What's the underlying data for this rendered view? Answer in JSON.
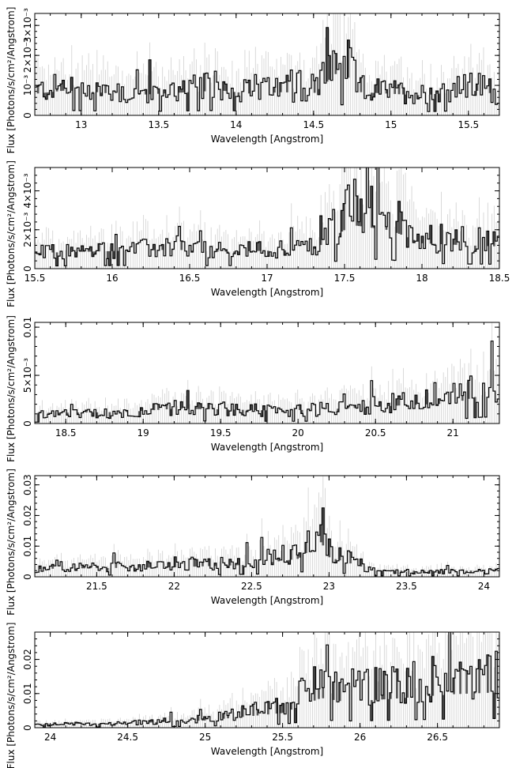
{
  "figure": {
    "xlabel": "Wavelength [Angstrom]",
    "ylabel": "Flux [Photons/s/cm²/Angstrom]"
  },
  "chart_data": [
    {
      "type": "line",
      "xlim": [
        12.7,
        15.7
      ],
      "ylim": [
        0,
        0.0034
      ],
      "xticks": [
        13,
        13.5,
        14,
        14.5,
        15,
        15.5
      ],
      "xtick_labels": [
        "13",
        "13.5",
        "14",
        "14.5",
        "15",
        "15.5"
      ],
      "yticks": [
        0,
        0.001,
        0.002,
        0.003
      ],
      "ytick_labels": [
        "0",
        "10⁻³",
        "2×10⁻³",
        "3×10⁻³"
      ],
      "xlabel": "Wavelength [Angstrom]",
      "ylabel": "Flux [Photons/s/cm²/Angstrom]",
      "series": [
        {
          "x": [
            12.7,
            12.9,
            13.1,
            13.3,
            13.5,
            13.7,
            13.9,
            14.1,
            14.3,
            14.5,
            14.68,
            14.8,
            15.0,
            15.2,
            15.4,
            15.6,
            15.7
          ],
          "y": [
            0.0009,
            0.0011,
            0.001,
            0.0008,
            0.0009,
            0.001,
            0.0011,
            0.0009,
            0.001,
            0.0009,
            0.0024,
            0.001,
            0.0009,
            0.0008,
            0.001,
            0.0011,
            0.0007
          ]
        }
      ],
      "baseline": 0.0005
    },
    {
      "type": "line",
      "xlim": [
        15.5,
        18.5
      ],
      "ylim": [
        0,
        0.0052
      ],
      "xticks": [
        15.5,
        16,
        16.5,
        17,
        17.5,
        18,
        18.5
      ],
      "xtick_labels": [
        "15.5",
        "16",
        "16.5",
        "17",
        "17.5",
        "18",
        "18.5"
      ],
      "yticks": [
        0,
        0.002,
        0.004
      ],
      "ytick_labels": [
        "0",
        "2×10⁻³",
        "4×10⁻³"
      ],
      "xlabel": "Wavelength [Angstrom]",
      "ylabel": "Flux [Photons/s/cm²/Angstrom]",
      "series": [
        {
          "x": [
            15.5,
            15.8,
            16.1,
            16.4,
            16.7,
            17.0,
            17.3,
            17.55,
            17.8,
            18.0,
            18.3,
            18.5
          ],
          "y": [
            0.0009,
            0.001,
            0.0011,
            0.0012,
            0.001,
            0.0011,
            0.0012,
            0.0035,
            0.003,
            0.0018,
            0.0016,
            0.0015
          ]
        }
      ],
      "baseline": 0.0007
    },
    {
      "type": "line",
      "xlim": [
        18.3,
        21.3
      ],
      "ylim": [
        0,
        0.0105
      ],
      "xticks": [
        18.5,
        19,
        19.5,
        20,
        20.5,
        21
      ],
      "xtick_labels": [
        "18.5",
        "19",
        "19.5",
        "20",
        "20.5",
        "21"
      ],
      "yticks": [
        0,
        0.005,
        0.01
      ],
      "ytick_labels": [
        "0",
        "5×10⁻³",
        "0.01"
      ],
      "xlabel": "Wavelength [Angstrom]",
      "ylabel": "Flux [Photons/s/cm²/Angstrom]",
      "series": [
        {
          "x": [
            18.3,
            18.6,
            18.9,
            19.2,
            19.5,
            19.8,
            20.1,
            20.4,
            20.7,
            21.0,
            21.2,
            21.3
          ],
          "y": [
            0.001,
            0.0011,
            0.0012,
            0.0018,
            0.0017,
            0.0015,
            0.0016,
            0.002,
            0.0025,
            0.0028,
            0.0045,
            0.004
          ]
        }
      ],
      "baseline": 0.0012
    },
    {
      "type": "line",
      "xlim": [
        21.1,
        24.1
      ],
      "ylim": [
        0,
        0.033
      ],
      "xticks": [
        21.5,
        22,
        22.5,
        23,
        23.5,
        24
      ],
      "xtick_labels": [
        "21.5",
        "22",
        "22.5",
        "23",
        "23.5",
        "24"
      ],
      "yticks": [
        0,
        0.01,
        0.02,
        0.03
      ],
      "ytick_labels": [
        "0",
        "0.01",
        "0.02",
        "0.03"
      ],
      "xlabel": "Wavelength [Angstrom]",
      "ylabel": "Flux [Photons/s/cm²/Angstrom]",
      "series": [
        {
          "x": [
            21.1,
            21.5,
            22.0,
            22.5,
            22.8,
            22.95,
            23.0,
            23.3,
            23.6,
            24.1
          ],
          "y": [
            0.003,
            0.0035,
            0.004,
            0.0055,
            0.009,
            0.019,
            0.01,
            0.002,
            0.002,
            0.002
          ]
        }
      ],
      "baseline": 0.002
    },
    {
      "type": "line",
      "xlim": [
        23.9,
        26.9
      ],
      "ylim": [
        0,
        0.028
      ],
      "xticks": [
        24,
        24.5,
        25,
        25.5,
        26,
        26.5
      ],
      "xtick_labels": [
        "24",
        "24.5",
        "25",
        "25.5",
        "26",
        "26.5"
      ],
      "yticks": [
        0,
        0.01,
        0.02
      ],
      "ytick_labels": [
        "0",
        "0.01",
        "0.02"
      ],
      "xlabel": "Wavelength [Angstrom]",
      "ylabel": "Flux [Photons/s/cm²/Angstrom]",
      "series": [
        {
          "x": [
            23.9,
            24.5,
            25.0,
            25.5,
            25.75,
            25.9,
            26.2,
            26.6,
            26.9
          ],
          "y": [
            0.001,
            0.0015,
            0.003,
            0.007,
            0.015,
            0.013,
            0.0145,
            0.017,
            0.018
          ]
        }
      ],
      "baseline": 0.001
    }
  ]
}
